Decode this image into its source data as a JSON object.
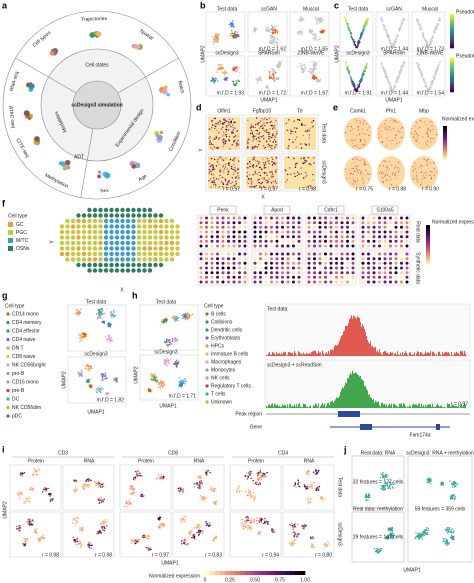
{
  "panels": {
    "a": {
      "letter": "a",
      "center": "scDesign3 simulation",
      "inner": [
        "Cell states",
        "Experimental design",
        "Modalities"
      ],
      "outer": [
        "Cell types",
        "Trajectories",
        "Spatial",
        "Batch",
        "Condition",
        "Age",
        "Sex",
        "Methylation",
        "CITE-seq",
        "ATAC-seq",
        "RNA-seq"
      ],
      "adt": "ADT"
    },
    "b": {
      "letter": "b",
      "titles": [
        "Test data",
        "scGAN",
        "Muscat",
        "scDesign3",
        "SPARSim",
        "ZINB-WaVE"
      ],
      "scores": [
        "m.f.D = 1.62",
        "m.f.D = 1.65",
        "m.f.D = 1.93",
        "m.f.D = 1.72",
        "m.f.D = 1.67"
      ],
      "xlabel": "UMAP1",
      "ylabel": "UMAP2"
    },
    "c": {
      "letter": "c",
      "titles": [
        "Test data",
        "scGAN",
        "Muscat",
        "scDesign3",
        "SPARSim",
        "ZINB-WaVE"
      ],
      "scores": [
        "m.f.D = 1.44",
        "m.f.D = 1.73",
        "m.f.D = 1.91",
        "m.f.D = 1.44",
        "m.f.D = 1.54"
      ],
      "legend": [
        "Pseudotime 1",
        "Pseudotime 2"
      ],
      "xlabel": "UMAP1",
      "ylabel": "UMAP2"
    },
    "d": {
      "letter": "d",
      "genes": [
        "Olfm1",
        "Fgfbp10",
        "Ttr"
      ],
      "rows": [
        "Test data",
        "scDesign3"
      ],
      "scores": [
        "r = 0.97",
        "r = 0.97",
        "r = 0.98"
      ],
      "xlabel": "X",
      "ylabel": "Y"
    },
    "e": {
      "letter": "e",
      "genes": [
        "Camk1",
        "Pfn1",
        "Mbp"
      ],
      "scores": [
        "r = 0.75",
        "r = 0.88",
        "r = 0.90"
      ],
      "legend": "Normalized expression"
    },
    "f": {
      "letter": "f",
      "legend_title": "Cell type",
      "cell_types": [
        "GC",
        "PGC",
        "M/TC",
        "OSNs"
      ],
      "xlabel": "X",
      "ylabel": "Y",
      "genes": [
        "Penk",
        "Apod",
        "Cdhr1",
        "S100a5"
      ],
      "rows": [
        "Real data",
        "Synthetic data"
      ],
      "legend": "Normalized expression"
    },
    "g": {
      "letter": "g",
      "legend_title": "Cell type",
      "cell_types": [
        "CD14 mono",
        "CD4 memory",
        "CD4 effector",
        "CD4 naive",
        "DN T",
        "CD8 naive",
        "NK CD56bright",
        "pro-B",
        "CD16 mono",
        "pre-B",
        "DC",
        "NK CD56dim",
        "pDC"
      ],
      "titles": [
        "Test data",
        "scDesign3"
      ],
      "score": "m.f.D = 1.82",
      "xlabel": "UMAP1",
      "ylabel": "UMAP2"
    },
    "h": {
      "letter": "h",
      "titles": [
        "Test data",
        "scDesign3"
      ],
      "score": "m.f.D = 1.71",
      "legend_title": "Cell type",
      "cell_types": [
        "B cells",
        "Collisions",
        "Dendritic cells",
        "Erythroblasts",
        "HPCs",
        "Immature B cells",
        "Macrophages",
        "Monocytes",
        "NK cells",
        "Regulatory T cells",
        "T cells",
        "Unknown"
      ],
      "tracks": [
        "Test data",
        "scDesign3 + scReadSim"
      ],
      "track_score": "r = 0.97",
      "peak": "Peak region",
      "gene": "Gene",
      "gene_name": "Fam174a",
      "xlabel": "UMAP1",
      "ylabel": "UMAP2"
    },
    "i": {
      "letter": "i",
      "markers": [
        "CD3",
        "CD8",
        "CD4"
      ],
      "modalities": [
        "Protein",
        "RNA"
      ],
      "rows": [
        "Test data",
        "scDesign3"
      ],
      "scores": [
        "r = 0.98",
        "r = 0.98",
        "r = 0.97",
        "r = 0.83",
        "r = 0.94",
        "r = 0.80"
      ],
      "xlabel": "UMAP1",
      "ylabel": "UMAP2",
      "legend": "Normalized expression",
      "legend_ticks": [
        "0",
        "0.25",
        "0.50",
        "0.75",
        "1.00"
      ]
    },
    "j": {
      "letter": "j",
      "boxes": [
        "Real data: RNA",
        "Real data: methylation",
        "scDesign3: RNA + methylation"
      ],
      "counts": [
        "32 features = 177 cells",
        "29 features = 142 cells",
        "59 features = 359 cells"
      ],
      "xlabel": "UMAP1"
    }
  }
}
